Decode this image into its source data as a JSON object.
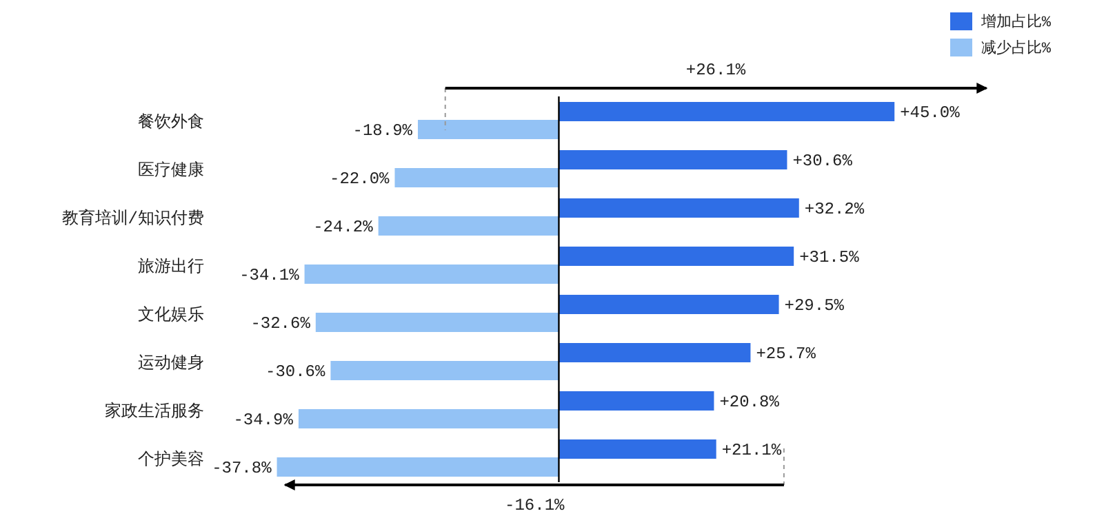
{
  "chart_data": {
    "type": "bar",
    "orientation": "horizontal",
    "categories": [
      "餐饮外食",
      "医疗健康",
      "教育培训/知识付费",
      "旅游出行",
      "文化娱乐",
      "运动健身",
      "家政生活服务",
      "个护美容"
    ],
    "series": [
      {
        "name": "增加占比%",
        "color": "#2f6ee6",
        "values": [
          45.0,
          30.6,
          32.2,
          31.5,
          29.5,
          25.7,
          20.8,
          21.1
        ],
        "value_labels": [
          "+45.0%",
          "+30.6%",
          "+32.2%",
          "+31.5%",
          "+29.5%",
          "+25.7%",
          "+20.8%",
          "+21.1%"
        ]
      },
      {
        "name": "减少占比%",
        "color": "#93c2f5",
        "values": [
          -18.9,
          -22.0,
          -24.2,
          -34.1,
          -32.6,
          -30.6,
          -34.9,
          -37.8
        ],
        "value_labels": [
          "-18.9%",
          "-22.0%",
          "-24.2%",
          "-34.1%",
          "-32.6%",
          "-30.6%",
          "-34.9%",
          "-37.8%"
        ]
      }
    ],
    "grid": false,
    "legend": "top right",
    "annotations": [
      "+26.1%",
      "-16.1%"
    ]
  }
}
